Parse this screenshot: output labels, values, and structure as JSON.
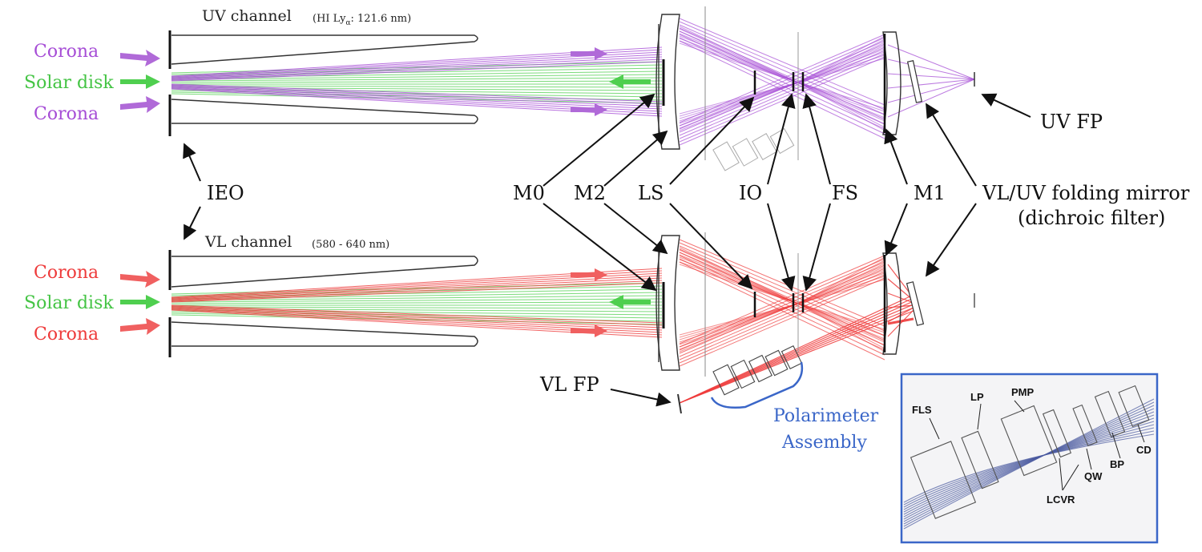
{
  "colors": {
    "uv_rays": "#a64dd6",
    "vl_rays": "#ee3b3b",
    "solar_disk": "#4fcf4f",
    "polarimeter": "#3a66c8",
    "inset_rays": "#4a5aa0",
    "ink": "#111111"
  },
  "uv_channel": {
    "title": "UV channel",
    "subtitle": "(HI Ly",
    "subtitle_sub": "α",
    "subtitle_tail": ": 121.6 nm)"
  },
  "vl_channel": {
    "title": "VL channel",
    "subtitle": "(580 - 640 nm)"
  },
  "sources": {
    "uv": [
      "Corona",
      "Solar disk",
      "Corona"
    ],
    "vl": [
      "Corona",
      "Solar disk",
      "Corona"
    ]
  },
  "labels": {
    "ieo": "IEO",
    "m0": "M0",
    "m2": "M2",
    "ls": "LS",
    "io": "IO",
    "fs": "FS",
    "m1": "M1",
    "folding_mirror_line1": "VL/UV folding mirror",
    "folding_mirror_line2": "(dichroic filter)",
    "uv_fp": "UV FP",
    "vl_fp": "VL FP",
    "polarimeter_line1": "Polarimeter",
    "polarimeter_line2": "Assembly"
  },
  "inset": {
    "labels": {
      "fls": "FLS",
      "lp": "LP",
      "pmp": "PMP",
      "cd": "CD",
      "bp": "BP",
      "qw": "QW",
      "lcvr": "LCVR"
    }
  }
}
